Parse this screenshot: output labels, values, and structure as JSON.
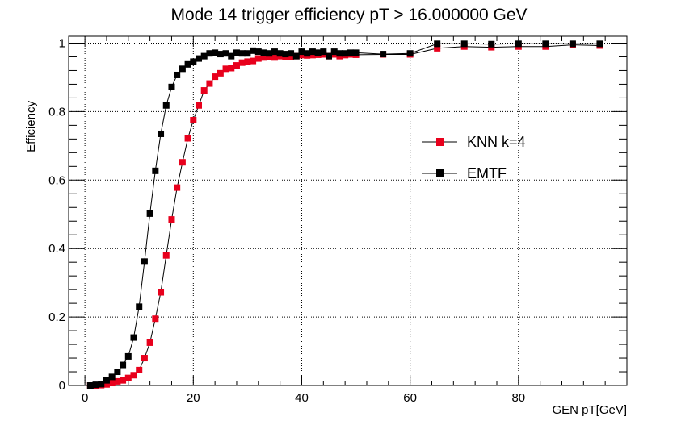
{
  "chart_data": {
    "type": "scatter",
    "title": "Mode 14 trigger efficiency pT > 16.000000 GeV",
    "xlabel": "GEN pT[GeV]",
    "ylabel": "Efficiency",
    "xlim": [
      -3,
      100
    ],
    "ylim": [
      0,
      1.02
    ],
    "x_ticks": [
      0,
      20,
      40,
      60,
      80
    ],
    "x_tick_labels": [
      "0",
      "20",
      "40",
      "60",
      "80"
    ],
    "y_ticks": [
      0,
      0.2,
      0.4,
      0.6,
      0.8,
      1
    ],
    "y_tick_labels": [
      "0",
      "0.2",
      "0.4",
      "0.6",
      "0.8",
      "1"
    ],
    "grid": true,
    "legend_position": "right-middle",
    "series": [
      {
        "name": "KNN k=4",
        "color": "#e8001c",
        "marker": "square",
        "points": [
          [
            1,
            0
          ],
          [
            2,
            0
          ],
          [
            3,
            0.001
          ],
          [
            4,
            0.003
          ],
          [
            5,
            0.007
          ],
          [
            6,
            0.012
          ],
          [
            7,
            0.015
          ],
          [
            8,
            0.022
          ],
          [
            9,
            0.03
          ],
          [
            10,
            0.045
          ],
          [
            11,
            0.08
          ],
          [
            12,
            0.125
          ],
          [
            13,
            0.195
          ],
          [
            14,
            0.272
          ],
          [
            15,
            0.38
          ],
          [
            16,
            0.485
          ],
          [
            17,
            0.578
          ],
          [
            18,
            0.652
          ],
          [
            19,
            0.722
          ],
          [
            20,
            0.775
          ],
          [
            21,
            0.818
          ],
          [
            22,
            0.862
          ],
          [
            23,
            0.882
          ],
          [
            24,
            0.902
          ],
          [
            25,
            0.912
          ],
          [
            26,
            0.925
          ],
          [
            27,
            0.927
          ],
          [
            28,
            0.935
          ],
          [
            29,
            0.943
          ],
          [
            30,
            0.946
          ],
          [
            31,
            0.948
          ],
          [
            32,
            0.955
          ],
          [
            33,
            0.958
          ],
          [
            34,
            0.961
          ],
          [
            35,
            0.958
          ],
          [
            36,
            0.962
          ],
          [
            37,
            0.96
          ],
          [
            38,
            0.96
          ],
          [
            39,
            0.962
          ],
          [
            40,
            0.965
          ],
          [
            41,
            0.964
          ],
          [
            42,
            0.965
          ],
          [
            43,
            0.966
          ],
          [
            44,
            0.967
          ],
          [
            45,
            0.962
          ],
          [
            46,
            0.967
          ],
          [
            47,
            0.962
          ],
          [
            48,
            0.965
          ],
          [
            49,
            0.967
          ],
          [
            50,
            0.966
          ],
          [
            55,
            0.967
          ],
          [
            60,
            0.967
          ],
          [
            65,
            0.985
          ],
          [
            70,
            0.99
          ],
          [
            75,
            0.988
          ],
          [
            80,
            0.99
          ],
          [
            85,
            0.99
          ],
          [
            90,
            0.995
          ],
          [
            95,
            0.993
          ]
        ]
      },
      {
        "name": "EMTF",
        "color": "#000000",
        "marker": "square",
        "points": [
          [
            1,
            0.0
          ],
          [
            2,
            0.002
          ],
          [
            3,
            0.004
          ],
          [
            4,
            0.015
          ],
          [
            5,
            0.025
          ],
          [
            6,
            0.04
          ],
          [
            7,
            0.06
          ],
          [
            8,
            0.085
          ],
          [
            9,
            0.14
          ],
          [
            10,
            0.23
          ],
          [
            11,
            0.362
          ],
          [
            12,
            0.502
          ],
          [
            13,
            0.627
          ],
          [
            14,
            0.735
          ],
          [
            15,
            0.818
          ],
          [
            16,
            0.872
          ],
          [
            17,
            0.907
          ],
          [
            18,
            0.925
          ],
          [
            19,
            0.938
          ],
          [
            20,
            0.946
          ],
          [
            21,
            0.955
          ],
          [
            22,
            0.962
          ],
          [
            23,
            0.97
          ],
          [
            24,
            0.972
          ],
          [
            25,
            0.968
          ],
          [
            26,
            0.97
          ],
          [
            27,
            0.962
          ],
          [
            28,
            0.972
          ],
          [
            29,
            0.97
          ],
          [
            30,
            0.97
          ],
          [
            31,
            0.978
          ],
          [
            32,
            0.975
          ],
          [
            33,
            0.972
          ],
          [
            34,
            0.97
          ],
          [
            35,
            0.975
          ],
          [
            36,
            0.97
          ],
          [
            37,
            0.968
          ],
          [
            38,
            0.97
          ],
          [
            39,
            0.962
          ],
          [
            40,
            0.975
          ],
          [
            41,
            0.97
          ],
          [
            42,
            0.975
          ],
          [
            43,
            0.972
          ],
          [
            44,
            0.975
          ],
          [
            45,
            0.962
          ],
          [
            46,
            0.975
          ],
          [
            47,
            0.97
          ],
          [
            48,
            0.97
          ],
          [
            49,
            0.972
          ],
          [
            50,
            0.972
          ],
          [
            55,
            0.968
          ],
          [
            60,
            0.97
          ],
          [
            65,
            0.998
          ],
          [
            70,
            0.998
          ],
          [
            75,
            0.997
          ],
          [
            80,
            0.998
          ],
          [
            85,
            0.998
          ],
          [
            90,
            0.998
          ],
          [
            95,
            0.998
          ]
        ]
      }
    ]
  }
}
